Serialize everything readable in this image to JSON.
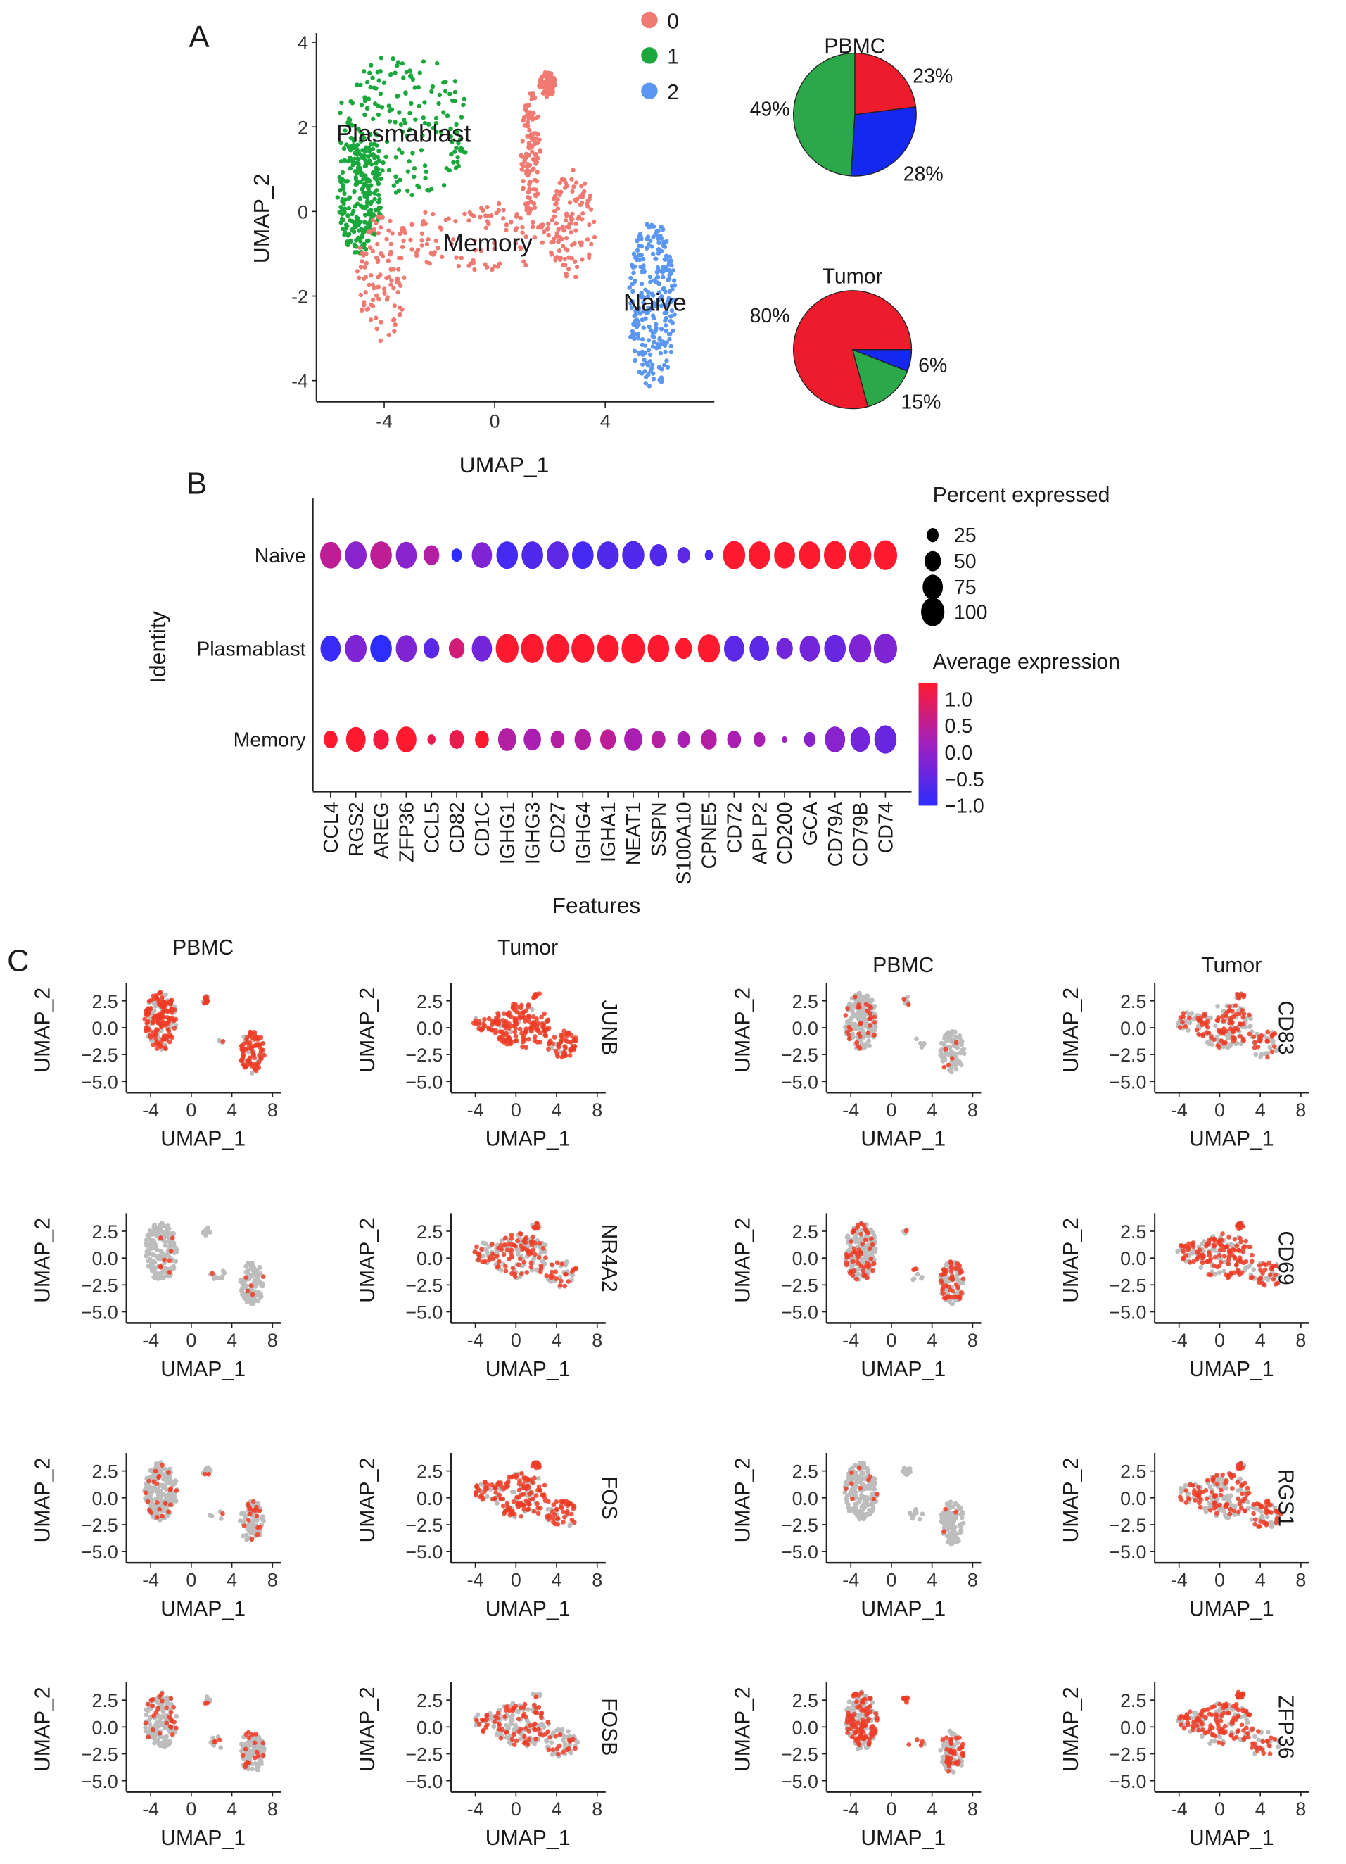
{
  "panel_labels": {
    "a": "A",
    "b": "B",
    "c": "C"
  },
  "chart_data": {
    "umap": {
      "type": "scatter",
      "xlabel": "UMAP_1",
      "ylabel": "UMAP_2",
      "xlim": [
        -6.4,
        7.9
      ],
      "ylim": [
        -4.5,
        4.2
      ],
      "xticks": [
        "-4",
        "0",
        "4"
      ],
      "yticks": [
        "4",
        "2",
        "0",
        "-2",
        "-4"
      ],
      "legend": {
        "position": "top-right",
        "entries": [
          "0",
          "1",
          "2"
        ]
      },
      "cluster_colors": [
        "#f07a72",
        "#1aa83c",
        "#5b97f2"
      ],
      "cluster_labels": [
        {
          "text": "Plasmablast",
          "x": -3.3,
          "y": 1.84
        },
        {
          "text": "Memory",
          "x": -0.25,
          "y": -0.75
        },
        {
          "text": "Naive",
          "x": 5.8,
          "y": -2.15
        }
      ]
    },
    "pies": [
      {
        "type": "pie",
        "title": "PBMC",
        "slices": [
          {
            "cluster": "0",
            "value": 23,
            "label": "23%",
            "color": "#ec1c2d"
          },
          {
            "cluster": "2",
            "value": 28,
            "label": "28%",
            "color": "#1428f0"
          },
          {
            "cluster": "1",
            "value": 49,
            "label": "49%",
            "color": "#2aa84a"
          }
        ]
      },
      {
        "type": "pie",
        "title": "Tumor",
        "slices": [
          {
            "cluster": "2",
            "value": 6,
            "label": "6%",
            "color": "#1428f0"
          },
          {
            "cluster": "1",
            "value": 15,
            "label": "15%",
            "color": "#2aa84a"
          },
          {
            "cluster": "0",
            "value": 80,
            "label": "80%",
            "color": "#ec1c2d"
          }
        ]
      }
    ],
    "dotplot": {
      "type": "dot",
      "xlabel": "Features",
      "ylabel": "Identity",
      "features": [
        "CCL4",
        "RGS2",
        "AREG",
        "ZFP36",
        "CCL5",
        "CD82",
        "CD1C",
        "IGHG1",
        "IGHG3",
        "CD27",
        "IGHG4",
        "IGHA1",
        "NEAT1",
        "SSPN",
        "S100A10",
        "CPNE5",
        "CD72",
        "APLP2",
        "CD200",
        "GCA",
        "CD79A",
        "CD79B",
        "CD74"
      ],
      "identities": [
        "Naive",
        "Plasmablast",
        "Memory"
      ],
      "pct_expressed": [
        [
          80,
          85,
          85,
          80,
          45,
          20,
          75,
          85,
          85,
          85,
          85,
          85,
          90,
          55,
          30,
          12,
          90,
          85,
          80,
          85,
          90,
          90,
          100
        ],
        [
          75,
          85,
          85,
          80,
          45,
          45,
          75,
          95,
          95,
          95,
          95,
          85,
          100,
          85,
          50,
          90,
          75,
          70,
          50,
          75,
          85,
          90,
          100
        ],
        [
          35,
          70,
          45,
          75,
          12,
          40,
          35,
          60,
          55,
          35,
          50,
          45,
          60,
          35,
          30,
          45,
          35,
          25,
          5,
          25,
          75,
          70,
          90
        ]
      ],
      "avg_expression": [
        [
          0.3,
          -0.2,
          0.3,
          -0.2,
          0.2,
          -1.0,
          -0.3,
          -0.8,
          -0.7,
          -0.6,
          -0.8,
          -0.7,
          -0.7,
          -0.7,
          -0.6,
          -0.8,
          1.1,
          1.0,
          1.0,
          1.1,
          1.1,
          1.1,
          1.1
        ],
        [
          -0.9,
          -0.3,
          -1.0,
          -0.3,
          -0.6,
          0.5,
          -0.4,
          1.1,
          1.1,
          1.1,
          1.1,
          1.0,
          1.1,
          1.1,
          1.0,
          1.0,
          -0.6,
          -0.6,
          -0.4,
          -0.4,
          -0.5,
          -0.3,
          -0.3
        ],
        [
          1.0,
          1.1,
          0.9,
          1.1,
          0.8,
          0.8,
          1.0,
          0.2,
          0.1,
          0.2,
          0.2,
          0.3,
          0.1,
          0.2,
          0.1,
          0.2,
          0.1,
          0.1,
          0.0,
          -0.2,
          -0.2,
          -0.4,
          -0.5
        ]
      ],
      "size_legend": {
        "title": "Percent expressed",
        "values": [
          "25",
          "50",
          "75",
          "100"
        ]
      },
      "color_legend": {
        "title": "Average expression",
        "ticks": [
          "1.0",
          "0.5",
          "0.0",
          "−0.5",
          "−1.0"
        ],
        "low_color": "#2d2dff",
        "mid_color": "#a020c0",
        "high_color": "#ff1a30"
      }
    },
    "feature_plots": {
      "type": "scatter",
      "xlabel": "UMAP_1",
      "ylabel": "UMAP_2",
      "xticks": [
        "-4",
        "0",
        "4",
        "8"
      ],
      "yticks": [
        "2.5",
        "0.0",
        "−2.5",
        "−5.0"
      ],
      "column_titles": [
        "PBMC",
        "Tumor",
        "PBMC",
        "Tumor"
      ],
      "low_color": "#bdbdbd",
      "high_color": "#ee3b24",
      "rows": [
        {
          "genes": [
            "JUNB",
            "CD83"
          ],
          "expressing_fraction": [
            0.7,
            0.85,
            0.1,
            0.35
          ]
        },
        {
          "genes": [
            "NR4A2",
            "CD69"
          ],
          "expressing_fraction": [
            0.05,
            0.5,
            0.35,
            0.6
          ]
        },
        {
          "genes": [
            "FOS",
            "RGS1"
          ],
          "expressing_fraction": [
            0.15,
            0.75,
            0.03,
            0.45
          ]
        },
        {
          "genes": [
            "FOSB",
            "ZFP36"
          ],
          "expressing_fraction": [
            0.15,
            0.4,
            0.4,
            0.55
          ]
        }
      ]
    }
  }
}
